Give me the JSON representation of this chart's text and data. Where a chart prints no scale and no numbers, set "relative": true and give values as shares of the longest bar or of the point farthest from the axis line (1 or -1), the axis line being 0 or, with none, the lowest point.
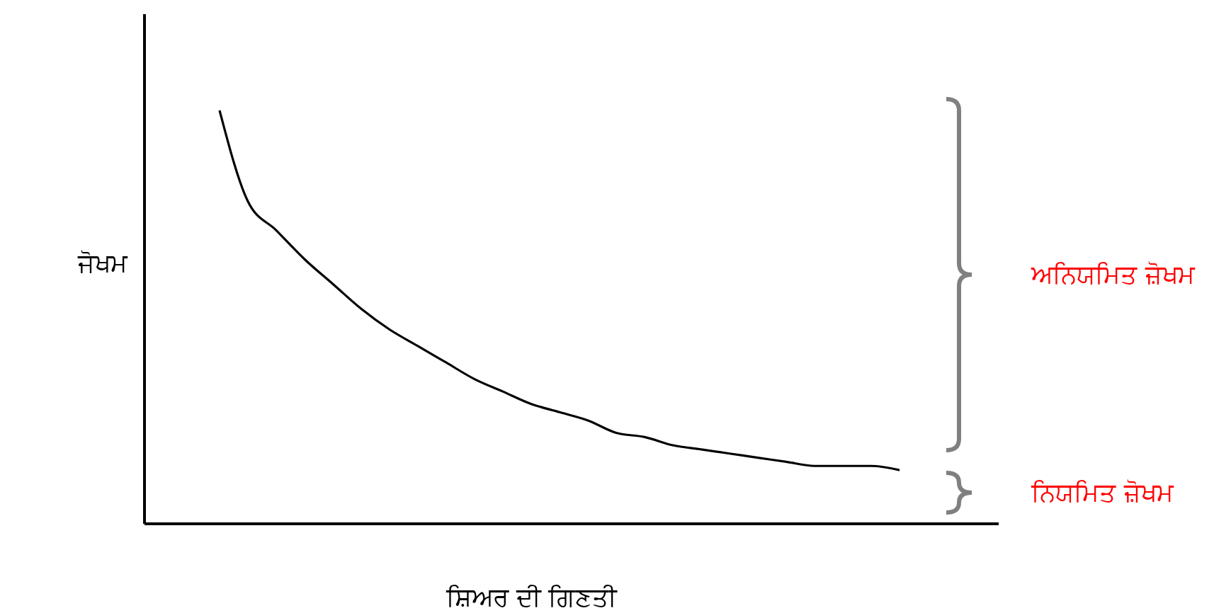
{
  "chart_data": {
    "type": "line",
    "relative": true,
    "xlabel": "ਸ਼ਿਅਰ ਦੀ ਗਿਣਤੀ",
    "ylabel": "ਜੋਖਮ",
    "categories": [
      null,
      null,
      null,
      null,
      null,
      null,
      null,
      null,
      null,
      null,
      null,
      null,
      null,
      null,
      null,
      null,
      null,
      null,
      null,
      null,
      null,
      null,
      null,
      null,
      null
    ],
    "series": [
      {
        "color": "#000000",
        "values": [
          1,
          0.78,
          0.71,
          0.64,
          0.58,
          0.52,
          0.47,
          0.43,
          0.39,
          0.35,
          0.32,
          0.29,
          0.27,
          0.25,
          0.22,
          0.21,
          0.19,
          0.18,
          0.17,
          0.16,
          0.15,
          0.14,
          0.14,
          0.14,
          0.13
        ]
      }
    ],
    "annotations": [
      "ਅਨਿਯਮਿਤ ਜ਼ੋਖਮ",
      "ਨਿਯਮਿਤ ਜ਼ੋਖਮ"
    ]
  }
}
